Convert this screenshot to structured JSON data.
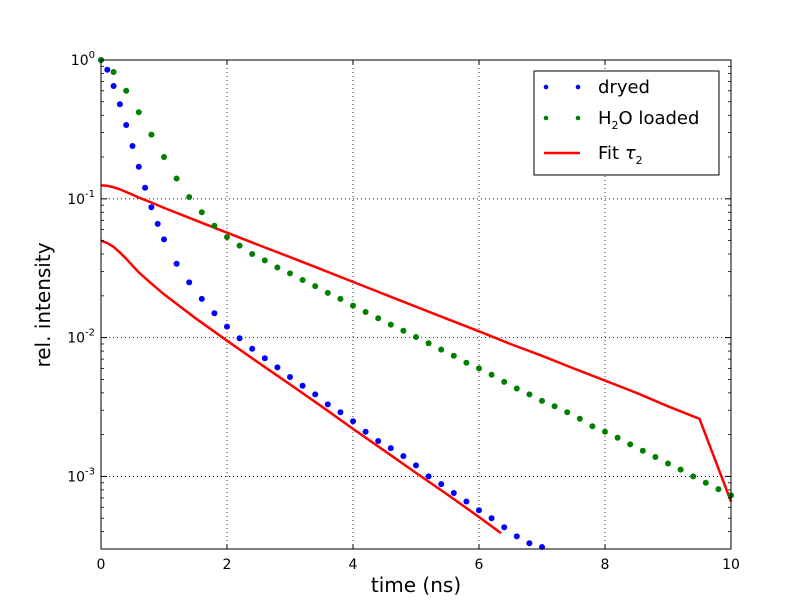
{
  "chart_data": {
    "type": "scatter",
    "title": "",
    "xlabel": "time (ns)",
    "ylabel": "rel. intensity",
    "xlim": [
      0,
      10
    ],
    "ylim": [
      0.0003,
      1
    ],
    "yscale": "log",
    "grid": true,
    "legend_placement": "top-right",
    "x_ticks": [
      "0",
      "2",
      "4",
      "6",
      "8",
      "10"
    ],
    "y_ticks": [
      {
        "value": 1,
        "mantissa": "10",
        "exponent": "0"
      },
      {
        "value": 0.1,
        "mantissa": "10",
        "exponent": "-1"
      },
      {
        "value": 0.01,
        "mantissa": "10",
        "exponent": "-2"
      },
      {
        "value": 0.001,
        "mantissa": "10",
        "exponent": "-3"
      }
    ],
    "legend": [
      {
        "label": "dryed",
        "kind": "points",
        "color": "#0000ff"
      },
      {
        "label_main": "H",
        "label_sub": "2",
        "label_rest": "O loaded",
        "kind": "points",
        "color": "#008000"
      },
      {
        "label_main": "Fit ",
        "label_symbol": "τ",
        "label_sub": "2",
        "kind": "line",
        "color": "#ff0000"
      }
    ],
    "series": [
      {
        "name": "dryed",
        "kind": "points",
        "color": "#0000ff",
        "x": [
          0.0,
          0.1,
          0.2,
          0.3,
          0.4,
          0.5,
          0.6,
          0.7,
          0.8,
          0.9,
          1.0,
          1.2,
          1.4,
          1.6,
          1.8,
          2.0,
          2.2,
          2.4,
          2.6,
          2.8,
          3.0,
          3.2,
          3.4,
          3.6,
          3.8,
          4.0,
          4.2,
          4.4,
          4.6,
          4.8,
          5.0,
          5.2,
          5.4,
          5.6,
          5.8,
          6.0,
          6.2,
          6.4,
          6.6,
          6.8,
          7.0
        ],
        "y": [
          1.0,
          0.85,
          0.65,
          0.48,
          0.34,
          0.24,
          0.17,
          0.12,
          0.087,
          0.066,
          0.051,
          0.034,
          0.025,
          0.019,
          0.015,
          0.012,
          0.0099,
          0.0083,
          0.0071,
          0.0061,
          0.0052,
          0.0045,
          0.0039,
          0.0033,
          0.0029,
          0.0025,
          0.0021,
          0.0018,
          0.0016,
          0.0014,
          0.0012,
          0.001,
          0.00088,
          0.00076,
          0.00066,
          0.00057,
          0.0005,
          0.00043,
          0.00037,
          0.00033,
          0.00031
        ]
      },
      {
        "name": "H2O loaded",
        "kind": "points",
        "color": "#008000",
        "x": [
          0.0,
          0.2,
          0.4,
          0.6,
          0.8,
          1.0,
          1.2,
          1.4,
          1.6,
          1.8,
          2.0,
          2.2,
          2.4,
          2.6,
          2.8,
          3.0,
          3.2,
          3.4,
          3.6,
          3.8,
          4.0,
          4.2,
          4.4,
          4.6,
          4.8,
          5.0,
          5.2,
          5.4,
          5.6,
          5.8,
          6.0,
          6.2,
          6.4,
          6.6,
          6.8,
          7.0,
          7.2,
          7.4,
          7.6,
          7.8,
          8.0,
          8.2,
          8.4,
          8.6,
          8.8,
          9.0,
          9.2,
          9.4,
          9.6,
          9.8,
          10.0
        ],
        "y": [
          1.0,
          0.82,
          0.6,
          0.42,
          0.29,
          0.2,
          0.14,
          0.103,
          0.08,
          0.064,
          0.053,
          0.046,
          0.04,
          0.036,
          0.032,
          0.029,
          0.026,
          0.0235,
          0.021,
          0.019,
          0.017,
          0.0153,
          0.0138,
          0.0124,
          0.0112,
          0.0101,
          0.0091,
          0.0082,
          0.0074,
          0.0066,
          0.006,
          0.0054,
          0.0048,
          0.0043,
          0.0039,
          0.0035,
          0.0032,
          0.0029,
          0.0026,
          0.0023,
          0.0021,
          0.0019,
          0.0017,
          0.00153,
          0.00138,
          0.00124,
          0.00112,
          0.001,
          0.0009,
          0.00081,
          0.00073
        ]
      },
      {
        "name": "Fit τ2 (dryed)",
        "kind": "line",
        "color": "#ff0000",
        "x": [
          0.0,
          0.1,
          0.2,
          0.3,
          0.4,
          0.5,
          0.6,
          0.8,
          1.0,
          1.5,
          2.0,
          2.5,
          3.0,
          3.5,
          4.0,
          4.5,
          5.0,
          5.5,
          6.0,
          6.35
        ],
        "y": [
          0.05,
          0.048,
          0.045,
          0.041,
          0.037,
          0.033,
          0.0295,
          0.0245,
          0.0205,
          0.0138,
          0.0095,
          0.0066,
          0.0046,
          0.0032,
          0.0022,
          0.00153,
          0.00106,
          0.00074,
          0.00051,
          0.00039
        ]
      },
      {
        "name": "Fit τ2 (H2O loaded)",
        "kind": "line",
        "color": "#ff0000",
        "x": [
          0.0,
          0.1,
          0.2,
          0.3,
          0.4,
          0.5,
          0.6,
          0.8,
          1.0,
          1.5,
          2.0,
          2.5,
          3.0,
          3.5,
          4.0,
          4.5,
          5.0,
          5.5,
          6.0,
          6.5,
          7.0,
          7.5,
          8.0,
          8.5,
          9.0,
          9.5,
          10.0
        ],
        "y": [
          0.125,
          0.124,
          0.121,
          0.117,
          0.112,
          0.107,
          0.102,
          0.094,
          0.086,
          0.07,
          0.057,
          0.0465,
          0.038,
          0.031,
          0.0252,
          0.0205,
          0.0167,
          0.0136,
          0.0111,
          0.009,
          0.0074,
          0.006,
          0.0049,
          0.004,
          0.0032,
          0.0026,
          0.00066
        ]
      }
    ]
  }
}
